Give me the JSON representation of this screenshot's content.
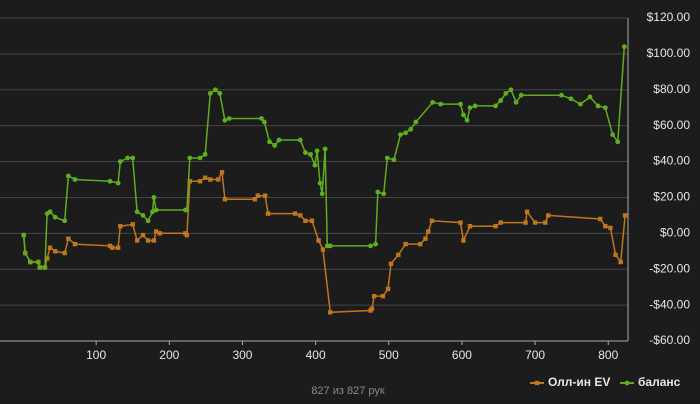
{
  "chart_data": {
    "type": "line",
    "footer": "827 из 827 рук",
    "xlim": [
      0,
      827
    ],
    "xticks": [
      100,
      200,
      300,
      400,
      500,
      600,
      700,
      800
    ],
    "ylim": [
      -60,
      120
    ],
    "yticks": [
      {
        "value": 120,
        "label": "$120.00"
      },
      {
        "value": 100,
        "label": "$100.00"
      },
      {
        "value": 80,
        "label": "$80.00"
      },
      {
        "value": 60,
        "label": "$60.00"
      },
      {
        "value": 40,
        "label": "$40.00"
      },
      {
        "value": 20,
        "label": "$20.00"
      },
      {
        "value": 0,
        "label": "$0.00"
      },
      {
        "value": -20,
        "label": "-$20.00"
      },
      {
        "value": -40,
        "label": "-$40.00"
      },
      {
        "value": -60,
        "label": "-$60.00"
      }
    ],
    "grid": true,
    "series": [
      {
        "name": "Олл-ин EV",
        "color": "#c0761c",
        "marker": "square",
        "x": [
          1,
          3,
          10,
          21,
          23,
          30,
          33,
          37,
          44,
          57,
          62,
          71,
          119,
          122,
          130,
          133,
          150,
          156,
          164,
          171,
          179,
          182,
          187,
          222,
          224,
          228,
          242,
          249,
          256,
          267,
          272,
          276,
          317,
          321,
          331,
          335,
          372,
          379,
          386,
          395,
          404,
          410,
          420,
          475,
          477,
          480,
          492,
          499,
          503,
          513,
          523,
          543,
          550,
          554,
          559,
          598,
          602,
          611,
          646,
          653,
          687,
          689,
          700,
          714,
          718,
          789,
          796,
          803,
          810,
          817,
          823
        ],
        "values": [
          -1,
          -11,
          -16,
          -16,
          -19,
          -19,
          -14,
          -8,
          -10,
          -11,
          -3,
          -6,
          -7,
          -8,
          -8,
          4,
          5,
          -4,
          -1,
          -4,
          -4,
          1,
          0,
          0,
          -1,
          29,
          29,
          31,
          30,
          30,
          34,
          19,
          19,
          21,
          21,
          11,
          11,
          10,
          7,
          7,
          -4,
          -9,
          -44,
          -43,
          -42,
          -35,
          -35,
          -31,
          -17,
          -12,
          -6,
          -6,
          -3,
          1,
          7,
          6,
          -4,
          4,
          4,
          6,
          6,
          12,
          6,
          6,
          10,
          8,
          4,
          3,
          -12,
          -16,
          10
        ]
      },
      {
        "name": "баланс",
        "color": "#5fae1e",
        "marker": "circle",
        "x": [
          1,
          3,
          10,
          21,
          23,
          30,
          33,
          37,
          44,
          57,
          62,
          71,
          119,
          130,
          133,
          143,
          150,
          156,
          164,
          171,
          177,
          179,
          182,
          222,
          224,
          228,
          242,
          249,
          256,
          263,
          269,
          276,
          282,
          326,
          330,
          337,
          344,
          350,
          379,
          386,
          393,
          399,
          402,
          406,
          409,
          413,
          416,
          420,
          475,
          482,
          485,
          493,
          498,
          507,
          516,
          523,
          530,
          537,
          560,
          571,
          598,
          602,
          607,
          611,
          618,
          646,
          653,
          660,
          667,
          674,
          681,
          736,
          749,
          762,
          775,
          786,
          796,
          806,
          813,
          822
        ],
        "values": [
          -1,
          -11,
          -16,
          -16,
          -19,
          -19,
          11,
          12,
          9,
          7,
          32,
          30,
          29,
          28,
          40,
          42,
          42,
          12,
          10,
          7,
          12,
          20,
          13,
          13,
          13,
          42,
          42,
          44,
          78,
          80,
          78,
          63,
          64,
          64,
          62,
          51,
          49,
          52,
          52,
          45,
          44,
          38,
          46,
          28,
          22,
          47,
          -7,
          -7,
          -7,
          -6,
          23,
          22,
          42,
          41,
          55,
          56,
          58,
          62,
          73,
          72,
          72,
          66,
          63,
          70,
          71,
          71,
          74,
          78,
          80,
          73,
          77,
          77,
          75,
          72,
          76,
          71,
          70,
          55,
          51,
          104
        ]
      }
    ]
  }
}
